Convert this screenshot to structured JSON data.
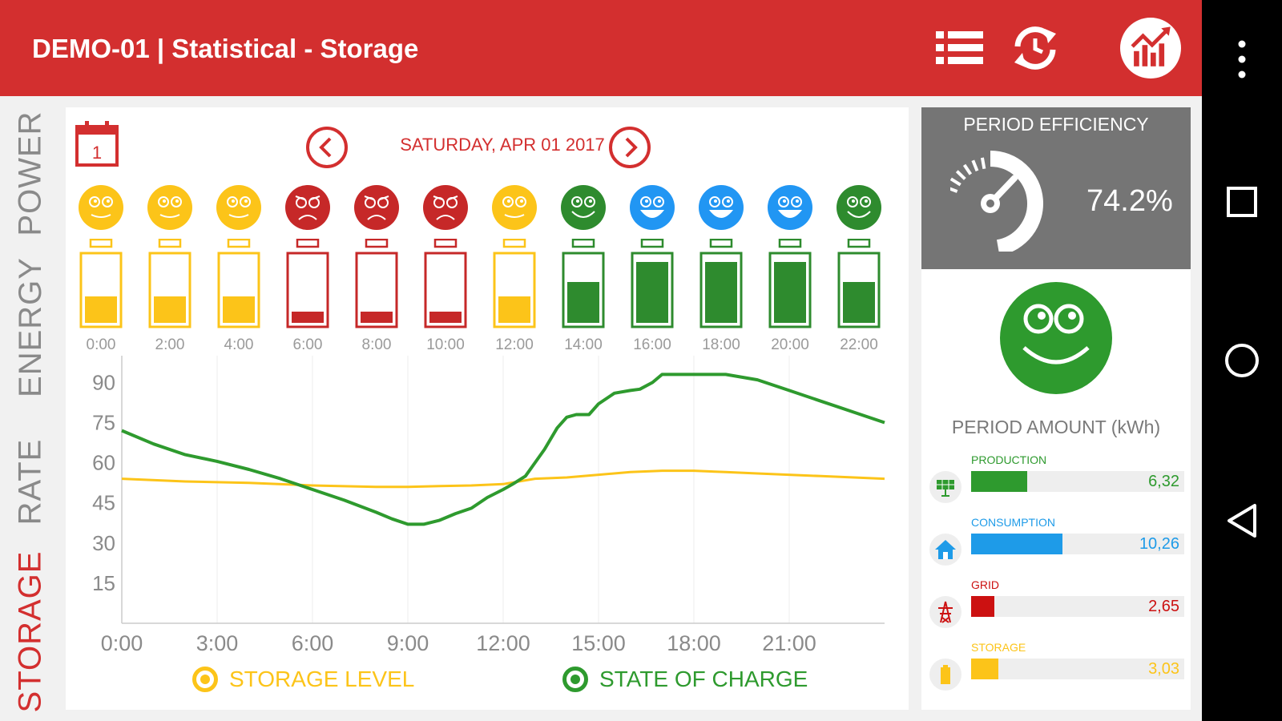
{
  "app": {
    "title": "DEMO-01 | Statistical - Storage"
  },
  "toolbar": {
    "icons": [
      "list-icon",
      "refresh-clock-icon",
      "chart-icon"
    ]
  },
  "side_tabs": [
    {
      "label": "POWER",
      "active": false
    },
    {
      "label": "ENERGY",
      "active": false
    },
    {
      "label": "RATE",
      "active": false
    },
    {
      "label": "STORAGE",
      "active": true
    }
  ],
  "date_nav": {
    "calendar_day": "1",
    "date": "SATURDAY, APR 01 2017"
  },
  "time_slots": [
    {
      "time": "0:00",
      "mood": "neutral",
      "color": "#fcc419",
      "charge": 0.4
    },
    {
      "time": "2:00",
      "mood": "neutral",
      "color": "#fcc419",
      "charge": 0.4
    },
    {
      "time": "4:00",
      "mood": "neutral",
      "color": "#fcc419",
      "charge": 0.4
    },
    {
      "time": "6:00",
      "mood": "sad",
      "color": "#c62828",
      "charge": 0.17
    },
    {
      "time": "8:00",
      "mood": "sad",
      "color": "#c62828",
      "charge": 0.17
    },
    {
      "time": "10:00",
      "mood": "sad",
      "color": "#c62828",
      "charge": 0.17
    },
    {
      "time": "12:00",
      "mood": "neutral",
      "color": "#fcc419",
      "charge": 0.4
    },
    {
      "time": "14:00",
      "mood": "happy",
      "color": "#2e8b2e",
      "charge": 0.62
    },
    {
      "time": "16:00",
      "mood": "very-happy",
      "color": "#2196f3",
      "charge": 0.93
    },
    {
      "time": "18:00",
      "mood": "very-happy",
      "color": "#2196f3",
      "charge": 0.93
    },
    {
      "time": "20:00",
      "mood": "very-happy",
      "color": "#2196f3",
      "charge": 0.93
    },
    {
      "time": "22:00",
      "mood": "happy",
      "color": "#2e8b2e",
      "charge": 0.62
    }
  ],
  "chart_data": {
    "type": "line",
    "ylim": [
      0,
      100
    ],
    "yticks": [
      15,
      30,
      45,
      60,
      75,
      90
    ],
    "xticks": [
      "0:00",
      "3:00",
      "6:00",
      "9:00",
      "12:00",
      "15:00",
      "18:00",
      "21:00"
    ],
    "series": [
      {
        "name": "STORAGE LEVEL",
        "color": "#fcc419",
        "points": [
          [
            0,
            54
          ],
          [
            2,
            53
          ],
          [
            4,
            52.5
          ],
          [
            6,
            51.5
          ],
          [
            8,
            51
          ],
          [
            9,
            51
          ],
          [
            10,
            51.3
          ],
          [
            11,
            51.5
          ],
          [
            12,
            52
          ],
          [
            13,
            54
          ],
          [
            14,
            54.5
          ],
          [
            15,
            55.5
          ],
          [
            16,
            56.5
          ],
          [
            17,
            57
          ],
          [
            18,
            57
          ],
          [
            19,
            56.5
          ],
          [
            20,
            56
          ],
          [
            22,
            55
          ],
          [
            24,
            54
          ]
        ]
      },
      {
        "name": "STATE OF CHARGE",
        "color": "#2e9a2e",
        "points": [
          [
            0,
            72
          ],
          [
            1,
            67
          ],
          [
            2,
            63
          ],
          [
            3,
            60.5
          ],
          [
            4,
            57.5
          ],
          [
            5,
            54
          ],
          [
            6,
            50
          ],
          [
            7,
            46
          ],
          [
            8,
            41.5
          ],
          [
            8.5,
            39
          ],
          [
            9,
            37
          ],
          [
            9.5,
            37
          ],
          [
            10,
            38.5
          ],
          [
            10.5,
            41
          ],
          [
            11,
            43
          ],
          [
            11.5,
            47
          ],
          [
            12,
            50
          ],
          [
            12.3,
            52
          ],
          [
            12.7,
            55
          ],
          [
            13,
            60
          ],
          [
            13.3,
            65
          ],
          [
            13.7,
            73
          ],
          [
            14,
            77
          ],
          [
            14.3,
            78
          ],
          [
            14.7,
            78
          ],
          [
            15,
            82
          ],
          [
            15.5,
            86
          ],
          [
            16,
            87
          ],
          [
            16.3,
            87.5
          ],
          [
            16.7,
            90
          ],
          [
            17,
            93
          ],
          [
            18,
            93
          ],
          [
            19,
            93
          ],
          [
            20,
            91
          ],
          [
            21,
            87
          ],
          [
            22,
            83
          ],
          [
            23,
            79
          ],
          [
            24,
            75
          ]
        ]
      }
    ]
  },
  "efficiency": {
    "title": "PERIOD EFFICIENCY",
    "value": "74.2%",
    "gauge_level": 0.742
  },
  "period_face": {
    "mood": "happy",
    "color": "#2e9a2e"
  },
  "period_amount": {
    "title": "PERIOD AMOUNT (kWh)",
    "max": 24,
    "items": [
      {
        "name": "PRODUCTION",
        "value": "6,32",
        "amount": 6.32,
        "color": "#2e9a2e",
        "icon": "solar-panel-icon"
      },
      {
        "name": "CONSUMPTION",
        "value": "10,26",
        "amount": 10.26,
        "color": "#1e9be8",
        "icon": "house-icon"
      },
      {
        "name": "GRID",
        "value": "2,65",
        "amount": 2.65,
        "color": "#cc1111",
        "icon": "power-tower-icon"
      },
      {
        "name": "STORAGE",
        "value": "3,03",
        "amount": 3.03,
        "color": "#fcc419",
        "icon": "battery-icon"
      }
    ]
  }
}
